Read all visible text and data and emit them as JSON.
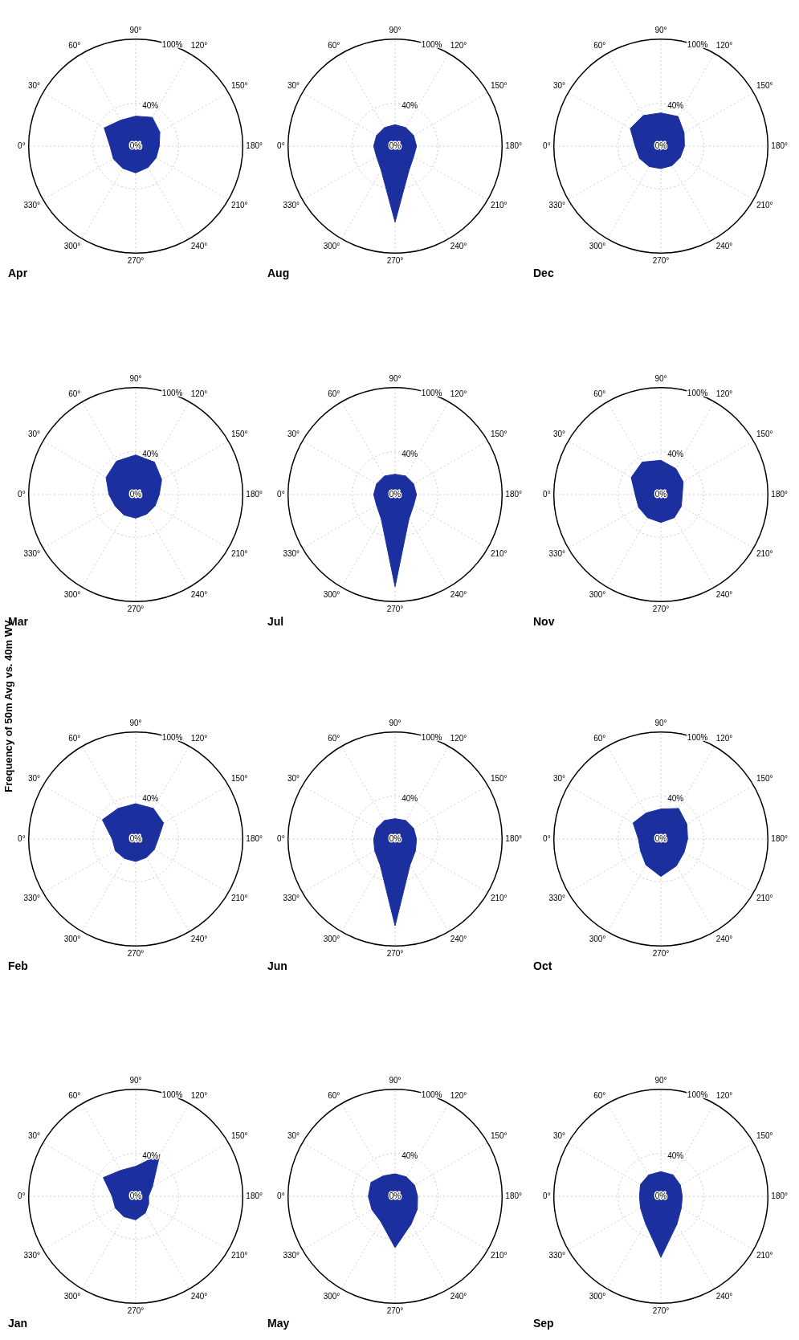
{
  "chart_data": [
    {
      "type": "radar",
      "title": "Jan",
      "annotations": [
        "Frequency of 50m Avg vs. 40m WV"
      ],
      "categories": [
        "0°",
        "30°",
        "60°",
        "90°",
        "120°",
        "150°",
        "180°",
        "210°",
        "240°",
        "270°",
        "300°",
        "330°"
      ],
      "values": [
        22,
        35,
        28,
        28,
        45,
        18,
        12,
        14,
        18,
        22,
        22,
        22
      ],
      "color": "#1c2f9e",
      "ylim": [
        0,
        100
      ],
      "yticks": [
        {
          "value": 0,
          "label": "0%"
        },
        {
          "value": 40,
          "label": "40%"
        },
        {
          "value": 100,
          "label": "100%"
        }
      ],
      "grid": true
    },
    {
      "type": "radar",
      "title": "Feb",
      "categories": [
        "0°",
        "30°",
        "60°",
        "90°",
        "120°",
        "150°",
        "180°",
        "210°",
        "240°",
        "270°",
        "300°",
        "330°"
      ],
      "values": [
        22,
        36,
        33,
        33,
        33,
        30,
        21,
        20,
        20,
        21,
        21,
        22
      ],
      "color": "#1c2f9e",
      "ylim": [
        0,
        100
      ],
      "yticks": [
        {
          "value": 0,
          "label": "0%"
        },
        {
          "value": 40,
          "label": "40%"
        },
        {
          "value": 100,
          "label": "100%"
        }
      ],
      "grid": true
    },
    {
      "type": "radar",
      "title": "Mar",
      "categories": [
        "0°",
        "30°",
        "60°",
        "90°",
        "120°",
        "150°",
        "180°",
        "210°",
        "240°",
        "270°",
        "300°",
        "330°"
      ],
      "values": [
        25,
        32,
        36,
        37,
        35,
        28,
        22,
        21,
        21,
        22,
        22,
        22
      ],
      "color": "#1c2f9e",
      "ylim": [
        0,
        100
      ],
      "yticks": [
        {
          "value": 0,
          "label": "0%"
        },
        {
          "value": 40,
          "label": "40%"
        },
        {
          "value": 100,
          "label": "100%"
        }
      ],
      "grid": true
    },
    {
      "type": "radar",
      "title": "Apr",
      "categories": [
        "0°",
        "30°",
        "60°",
        "90°",
        "120°",
        "150°",
        "180°",
        "210°",
        "240°",
        "270°",
        "300°",
        "330°"
      ],
      "values": [
        24,
        34,
        28,
        28,
        31,
        26,
        22,
        22,
        23,
        25,
        24,
        24
      ],
      "color": "#1c2f9e",
      "ylim": [
        0,
        100
      ],
      "yticks": [
        {
          "value": 0,
          "label": "0%"
        },
        {
          "value": 40,
          "label": "40%"
        },
        {
          "value": 100,
          "label": "100%"
        }
      ],
      "grid": true
    },
    {
      "type": "radar",
      "title": "May",
      "categories": [
        "0°",
        "30°",
        "60°",
        "90°",
        "120°",
        "150°",
        "180°",
        "210°",
        "240°",
        "270°",
        "300°",
        "330°"
      ],
      "values": [
        25,
        26,
        22,
        21,
        21,
        21,
        21,
        24,
        30,
        48,
        27,
        25
      ],
      "color": "#1c2f9e",
      "ylim": [
        0,
        100
      ],
      "yticks": [
        {
          "value": 0,
          "label": "0%"
        },
        {
          "value": 40,
          "label": "40%"
        },
        {
          "value": 100,
          "label": "100%"
        }
      ],
      "grid": true
    },
    {
      "type": "radar",
      "title": "Jun",
      "categories": [
        "0°",
        "30°",
        "60°",
        "90°",
        "120°",
        "150°",
        "180°",
        "210°",
        "240°",
        "270°",
        "300°",
        "330°"
      ],
      "values": [
        20,
        20,
        20,
        19,
        20,
        20,
        20,
        22,
        28,
        81,
        28,
        22
      ],
      "color": "#1c2f9e",
      "ylim": [
        0,
        100
      ],
      "yticks": [
        {
          "value": 0,
          "label": "0%"
        },
        {
          "value": 40,
          "label": "40%"
        },
        {
          "value": 100,
          "label": "100%"
        }
      ],
      "grid": true
    },
    {
      "type": "radar",
      "title": "Jul",
      "categories": [
        "0°",
        "30°",
        "60°",
        "90°",
        "120°",
        "150°",
        "180°",
        "210°",
        "240°",
        "270°",
        "300°",
        "330°"
      ],
      "values": [
        20,
        20,
        20,
        19,
        20,
        20,
        20,
        20,
        26,
        86,
        26,
        20
      ],
      "color": "#1c2f9e",
      "ylim": [
        0,
        100
      ],
      "yticks": [
        {
          "value": 0,
          "label": "0%"
        },
        {
          "value": 40,
          "label": "40%"
        },
        {
          "value": 100,
          "label": "100%"
        }
      ],
      "grid": true
    },
    {
      "type": "radar",
      "title": "Aug",
      "categories": [
        "0°",
        "30°",
        "60°",
        "90°",
        "120°",
        "150°",
        "180°",
        "210°",
        "240°",
        "270°",
        "300°",
        "330°"
      ],
      "values": [
        20,
        20,
        20,
        20,
        20,
        20,
        20,
        20,
        26,
        71,
        26,
        20
      ],
      "color": "#1c2f9e",
      "ylim": [
        0,
        100
      ],
      "yticks": [
        {
          "value": 0,
          "label": "0%"
        },
        {
          "value": 40,
          "label": "40%"
        },
        {
          "value": 100,
          "label": "100%"
        }
      ],
      "grid": true
    },
    {
      "type": "radar",
      "title": "Sep",
      "categories": [
        "0°",
        "30°",
        "60°",
        "90°",
        "120°",
        "150°",
        "180°",
        "210°",
        "240°",
        "270°",
        "300°",
        "330°"
      ],
      "values": [
        20,
        22,
        23,
        23,
        23,
        21,
        20,
        22,
        30,
        57,
        29,
        22
      ],
      "color": "#1c2f9e",
      "ylim": [
        0,
        100
      ],
      "yticks": [
        {
          "value": 0,
          "label": "0%"
        },
        {
          "value": 40,
          "label": "40%"
        },
        {
          "value": 100,
          "label": "100%"
        }
      ],
      "grid": true
    },
    {
      "type": "radar",
      "title": "Oct",
      "categories": [
        "0°",
        "30°",
        "60°",
        "90°",
        "120°",
        "150°",
        "180°",
        "210°",
        "240°",
        "270°",
        "300°",
        "330°"
      ],
      "values": [
        21,
        30,
        28,
        28,
        33,
        28,
        25,
        25,
        29,
        35,
        28,
        22
      ],
      "color": "#1c2f9e",
      "ylim": [
        0,
        100
      ],
      "yticks": [
        {
          "value": 0,
          "label": "0%"
        },
        {
          "value": 40,
          "label": "40%"
        },
        {
          "value": 100,
          "label": "100%"
        }
      ],
      "grid": true
    },
    {
      "type": "radar",
      "title": "Nov",
      "categories": [
        "0°",
        "30°",
        "60°",
        "90°",
        "120°",
        "150°",
        "180°",
        "210°",
        "240°",
        "270°",
        "300°",
        "330°"
      ],
      "values": [
        24,
        32,
        35,
        32,
        28,
        24,
        20,
        22,
        25,
        26,
        25,
        24
      ],
      "color": "#1c2f9e",
      "ylim": [
        0,
        100
      ],
      "yticks": [
        {
          "value": 0,
          "label": "0%"
        },
        {
          "value": 40,
          "label": "40%"
        },
        {
          "value": 100,
          "label": "100%"
        }
      ],
      "grid": true
    },
    {
      "type": "radar",
      "title": "Dec",
      "categories": [
        "0°",
        "30°",
        "60°",
        "90°",
        "120°",
        "150°",
        "180°",
        "210°",
        "240°",
        "270°",
        "300°",
        "330°"
      ],
      "values": [
        24,
        33,
        33,
        31,
        32,
        25,
        22,
        21,
        21,
        21,
        22,
        23
      ],
      "color": "#1c2f9e",
      "ylim": [
        0,
        100
      ],
      "yticks": [
        {
          "value": 0,
          "label": "0%"
        },
        {
          "value": 40,
          "label": "40%"
        },
        {
          "value": 100,
          "label": "100%"
        }
      ],
      "grid": true
    }
  ]
}
